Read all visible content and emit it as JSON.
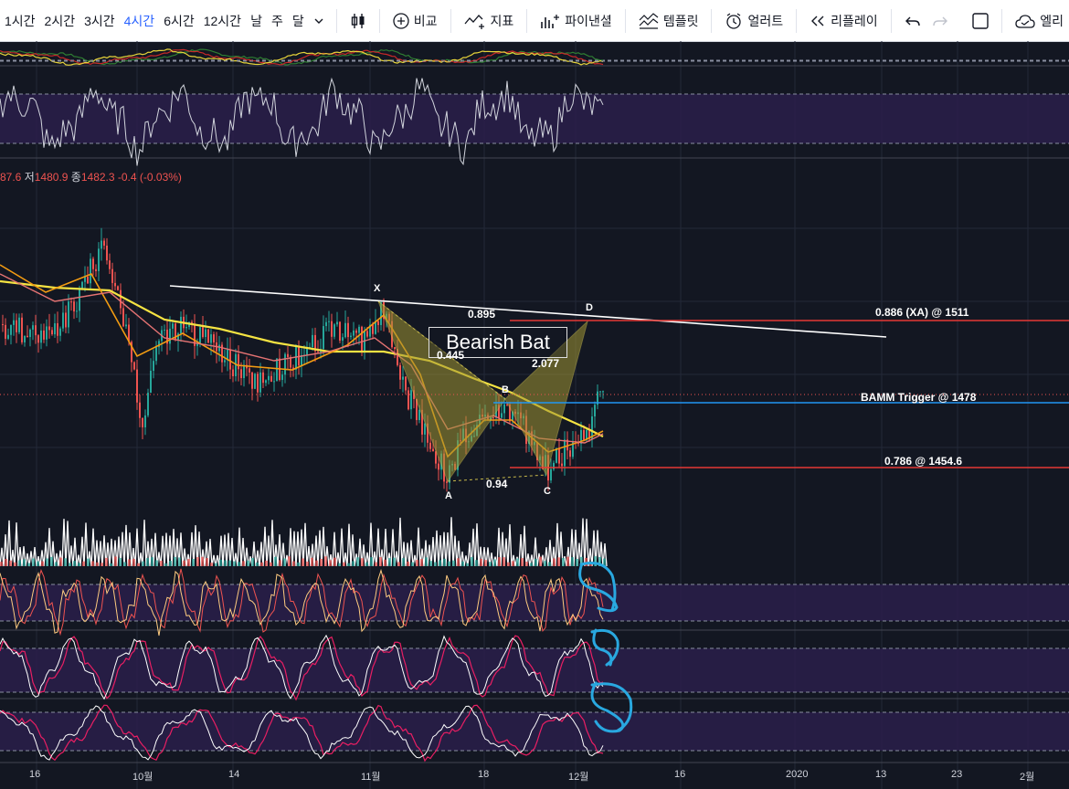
{
  "toolbar": {
    "timeframes": [
      "1시간",
      "2시간",
      "3시간",
      "4시간",
      "6시간",
      "12시간",
      "날",
      "주",
      "달"
    ],
    "active_timeframe": "4시간",
    "compare_label": "비교",
    "indicators_label": "지표",
    "pine_label": "파이낸셜",
    "templates_label": "템플릿",
    "alert_label": "얼러트",
    "replay_label": "리플레이",
    "cutoff_label": "엘리"
  },
  "stats": {
    "open_tail": "87.6",
    "low_key": "저",
    "low_val": "1480.9",
    "close_key": "종",
    "close_val": "1482.3",
    "change": "-0.4 (-0.03%)"
  },
  "pattern": {
    "title": "Bearish Bat",
    "points": {
      "x": "X",
      "a": "A",
      "b": "B",
      "c": "C",
      "d": "D"
    },
    "ratios": {
      "xb": "0.445",
      "ac": "0.94",
      "bd": "2.077",
      "xd": "0.895"
    }
  },
  "levels": {
    "xa": "0.886 (XA) @ 1511",
    "bamm": "BAMM Trigger @ 1478",
    "fib": "0.786 @ 1454.6"
  },
  "x_axis": [
    "16",
    "10월",
    "14",
    "11월",
    "18",
    "12월",
    "16",
    "2020",
    "13",
    "23",
    "2월"
  ],
  "colors": {
    "background": "#131722",
    "up": "#26a69a",
    "down": "#ef5350",
    "ma_yellow": "#f5e342",
    "ma_orange": "#f39c12",
    "pattern_fill": "#a09533",
    "marker_blue": "#29a8e0",
    "panel_purple": "#2a1f4a"
  }
}
